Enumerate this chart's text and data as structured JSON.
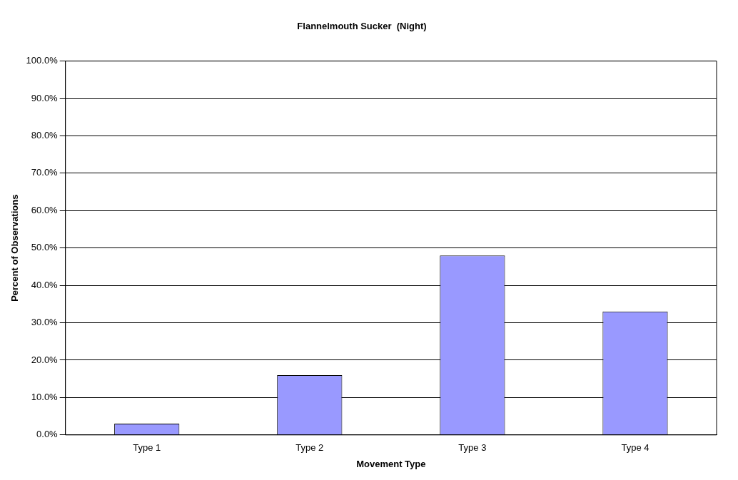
{
  "chart_data": {
    "type": "bar",
    "title": "Flannelmouth Sucker  (Night)",
    "xlabel": "Movement Type",
    "ylabel": "Percent of Observations",
    "categories": [
      "Type 1",
      "Type 2",
      "Type 3",
      "Type 4"
    ],
    "values": [
      3,
      16,
      48,
      33
    ],
    "color": "#9999ff",
    "ylim": [
      0,
      100
    ],
    "yticks": [
      {
        "value": 0,
        "label": "0.0%"
      },
      {
        "value": 10,
        "label": "10.0%"
      },
      {
        "value": 20,
        "label": "20.0%"
      },
      {
        "value": 30,
        "label": "30.0%"
      },
      {
        "value": 40,
        "label": "40.0%"
      },
      {
        "value": 50,
        "label": "50.0%"
      },
      {
        "value": 60,
        "label": "60.0%"
      },
      {
        "value": 70,
        "label": "70.0%"
      },
      {
        "value": 80,
        "label": "80.0%"
      },
      {
        "value": 90,
        "label": "90.0%"
      },
      {
        "value": 100,
        "label": "100.0%"
      }
    ],
    "grid": "y",
    "legend": false
  }
}
